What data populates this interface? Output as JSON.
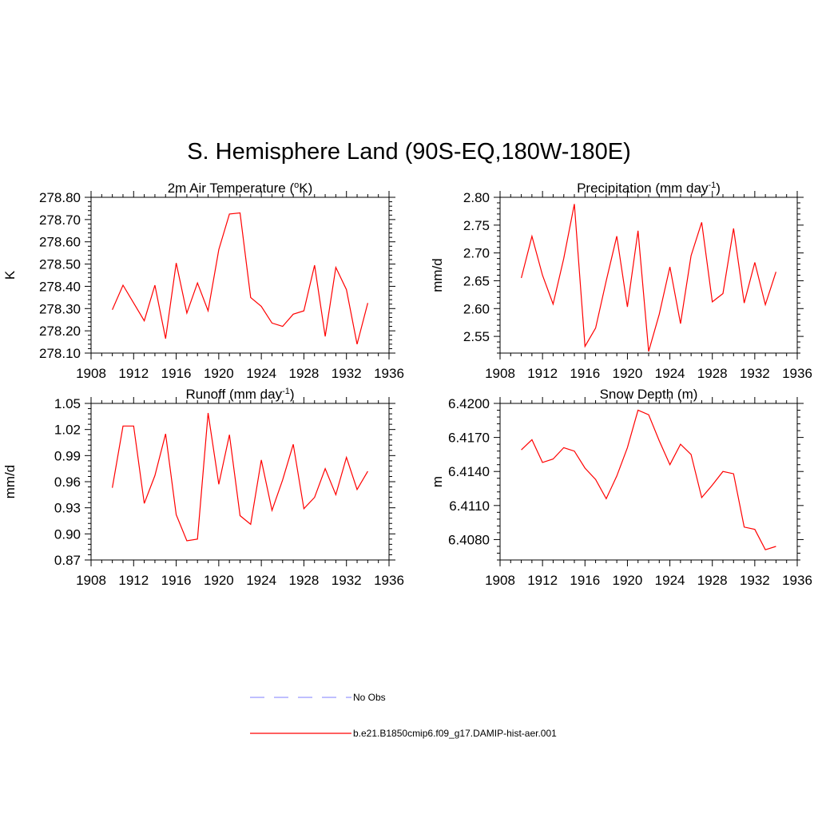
{
  "title": "S. Hemisphere Land (90S-EQ,180W-180E)",
  "chart_data": [
    {
      "id": "temp",
      "type": "line",
      "title": "2m Air Temperature (",
      "title_unit_sup": "o",
      "title_unit_rest": "K)",
      "ylabel": "K",
      "xlim": [
        1908,
        1936
      ],
      "ylim": [
        278.1,
        278.8
      ],
      "xticks": [
        "1908",
        "1912",
        "1916",
        "1920",
        "1924",
        "1928",
        "1932",
        "1936"
      ],
      "yticks": [
        "278.10",
        "278.20",
        "278.30",
        "278.40",
        "278.50",
        "278.60",
        "278.70",
        "278.80"
      ],
      "x": [
        1910,
        1911,
        1912,
        1913,
        1914,
        1915,
        1916,
        1917,
        1918,
        1919,
        1920,
        1921,
        1922,
        1923,
        1924,
        1925,
        1926,
        1927,
        1928,
        1929,
        1930,
        1931,
        1932,
        1933,
        1934
      ],
      "series": [
        {
          "color": "#ff0000",
          "values": [
            278.295,
            278.405,
            278.325,
            278.245,
            278.405,
            278.165,
            278.505,
            278.28,
            278.415,
            278.29,
            278.565,
            278.725,
            278.73,
            278.35,
            278.31,
            278.235,
            278.22,
            278.275,
            278.29,
            278.495,
            278.175,
            278.485,
            278.385,
            278.14,
            278.325
          ]
        }
      ]
    },
    {
      "id": "precip",
      "type": "line",
      "title": "Precipitation (mm day",
      "title_unit_sup": "-1",
      "title_unit_rest": ")",
      "ylabel": "mm/d",
      "xlim": [
        1908,
        1936
      ],
      "ylim": [
        2.52,
        2.8
      ],
      "xticks": [
        "1908",
        "1912",
        "1916",
        "1920",
        "1924",
        "1928",
        "1932",
        "1936"
      ],
      "yticks": [
        "2.55",
        "2.60",
        "2.65",
        "2.70",
        "2.75",
        "2.80"
      ],
      "ytick_values": [
        2.55,
        2.6,
        2.65,
        2.7,
        2.75,
        2.8
      ],
      "x": [
        1910,
        1911,
        1912,
        1913,
        1914,
        1915,
        1916,
        1917,
        1918,
        1919,
        1920,
        1921,
        1922,
        1923,
        1924,
        1925,
        1926,
        1927,
        1928,
        1929,
        1930,
        1931,
        1932,
        1933,
        1934
      ],
      "series": [
        {
          "color": "#ff0000",
          "values": [
            2.655,
            2.73,
            2.66,
            2.608,
            2.69,
            2.788,
            2.532,
            2.565,
            2.65,
            2.73,
            2.603,
            2.74,
            2.523,
            2.59,
            2.675,
            2.573,
            2.695,
            2.755,
            2.612,
            2.627,
            2.744,
            2.61,
            2.683,
            2.607,
            2.666
          ]
        }
      ]
    },
    {
      "id": "runoff",
      "type": "line",
      "title": "Runoff (mm day",
      "title_unit_sup": "-1",
      "title_unit_rest": ")",
      "ylabel": "mm/d",
      "xlim": [
        1908,
        1936
      ],
      "ylim": [
        0.87,
        1.05
      ],
      "xticks": [
        "1908",
        "1912",
        "1916",
        "1920",
        "1924",
        "1928",
        "1932",
        "1936"
      ],
      "yticks": [
        "0.87",
        "0.90",
        "0.93",
        "0.96",
        "0.99",
        "1.02",
        "1.05"
      ],
      "x": [
        1910,
        1911,
        1912,
        1913,
        1914,
        1915,
        1916,
        1917,
        1918,
        1919,
        1920,
        1921,
        1922,
        1923,
        1924,
        1925,
        1926,
        1927,
        1928,
        1929,
        1930,
        1931,
        1932,
        1933,
        1934
      ],
      "series": [
        {
          "color": "#ff0000",
          "values": [
            0.953,
            1.024,
            1.024,
            0.935,
            0.967,
            1.015,
            0.922,
            0.892,
            0.894,
            1.039,
            0.957,
            1.014,
            0.921,
            0.911,
            0.985,
            0.927,
            0.962,
            1.003,
            0.929,
            0.942,
            0.975,
            0.945,
            0.988,
            0.951,
            0.972
          ]
        }
      ]
    },
    {
      "id": "snow",
      "type": "line",
      "title": "Snow Depth (m)",
      "title_unit_sup": "",
      "title_unit_rest": "",
      "ylabel": "m",
      "xlim": [
        1908,
        1936
      ],
      "ylim": [
        6.4062,
        6.42
      ],
      "xticks": [
        "1908",
        "1912",
        "1916",
        "1920",
        "1924",
        "1928",
        "1932",
        "1936"
      ],
      "yticks": [
        "6.4080",
        "6.4110",
        "6.4140",
        "6.4170",
        "6.4200"
      ],
      "x": [
        1910,
        1911,
        1912,
        1913,
        1914,
        1915,
        1916,
        1917,
        1918,
        1919,
        1920,
        1921,
        1922,
        1923,
        1924,
        1925,
        1926,
        1927,
        1928,
        1929,
        1930,
        1931,
        1932,
        1933,
        1934
      ],
      "series": [
        {
          "color": "#ff0000",
          "values": [
            6.4159,
            6.4168,
            6.4148,
            6.4151,
            6.4161,
            6.4158,
            6.4143,
            6.4133,
            6.4116,
            6.4136,
            6.4161,
            6.4194,
            6.419,
            6.4167,
            6.4146,
            6.4164,
            6.4155,
            6.4117,
            6.4128,
            6.414,
            6.4138,
            6.4091,
            6.4089,
            6.4071,
            6.4074
          ]
        }
      ]
    }
  ],
  "legend": [
    {
      "label": "No Obs",
      "color": "#9999ff",
      "dash": true
    },
    {
      "label": "b.e21.B1850cmip6.f09_g17.DAMIP-hist-aer.001",
      "color": "#ff0000",
      "dash": false
    }
  ]
}
